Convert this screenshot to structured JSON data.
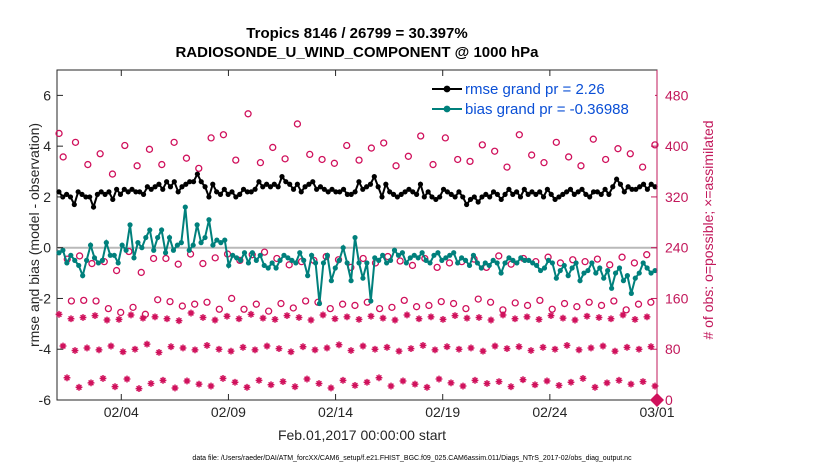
{
  "chart_data": {
    "type": "line",
    "title": "Tropics 8146 / 26799 = 30.397%",
    "subtitle": "RADIOSONDE_U_WIND_COMPONENT @ 1000 hPa",
    "xlabel": "Feb.01,2017 00:00:00 start",
    "ylabel": "rmse and bias (model - observation)",
    "ylabel_right": "# of obs: o=possible; ×=assimilated",
    "footnote": "data file: /Users/raeder/DAI/ATM_forcXX/CAM6_setup/f.e21.FHIST_BGC.f09_025.CAM6assim.011/Diags_NTrS_2017-02/obs_diag_output.nc",
    "xlim": [
      1,
      29
    ],
    "ylim": [
      -6,
      7
    ],
    "ylim_right": [
      0,
      520
    ],
    "x_tick_labels": [
      "02/04",
      "02/09",
      "02/14",
      "02/19",
      "02/24",
      "03/01"
    ],
    "x_tick_values": [
      4,
      9,
      14,
      19,
      24,
      29
    ],
    "y_ticks": [
      -6,
      -4,
      -2,
      0,
      2,
      4,
      6
    ],
    "y_ticks_right": [
      0,
      80,
      160,
      240,
      320,
      400,
      480
    ],
    "legend": [
      {
        "name": "rmse grand pr = 2.26"
      },
      {
        "name": "bias grand pr = -0.36988"
      }
    ],
    "series": [
      {
        "name": "rmse",
        "color": "#000000",
        "values": [
          2.2,
          2.0,
          2.1,
          2.0,
          1.7,
          2.2,
          2.1,
          2.0,
          2.0,
          1.6,
          2.1,
          2.2,
          2.1,
          2.2,
          1.9,
          2.3,
          2.1,
          2.3,
          2.2,
          2.3,
          2.2,
          2.2,
          2.1,
          2.4,
          2.3,
          2.4,
          2.5,
          2.3,
          2.6,
          2.4,
          2.6,
          2.2,
          2.4,
          2.5,
          2.6,
          2.6,
          2.9,
          2.6,
          2.4,
          2.0,
          2.5,
          2.2,
          2.1,
          2.3,
          2.1,
          2.2,
          2.0,
          2.1,
          2.3,
          2.2,
          2.2,
          2.3,
          2.6,
          2.4,
          2.5,
          2.4,
          2.5,
          2.4,
          2.8,
          2.6,
          2.5,
          2.3,
          2.5,
          2.2,
          2.4,
          2.5,
          2.6,
          2.3,
          2.4,
          2.3,
          2.2,
          2.3,
          2.2,
          2.2,
          2.3,
          2.1,
          2.1,
          2.2,
          2.6,
          2.3,
          2.4,
          2.5,
          2.8,
          2.4,
          2.0,
          2.5,
          2.2,
          2.1,
          2.0,
          2.1,
          2.2,
          2.3,
          2.2,
          2.1,
          2.5,
          2.0,
          2.2,
          2.0,
          1.9,
          2.0,
          2.3,
          2.2,
          2.1,
          2.0,
          2.2,
          2.0,
          1.7,
          1.9,
          2.0,
          1.8,
          2.0,
          2.1,
          2.0,
          2.2,
          2.1,
          1.9,
          2.1,
          2.3,
          2.1,
          2.2,
          2.0,
          2.3,
          2.1,
          2.2,
          2.1,
          2.2,
          2.0,
          2.3,
          2.1,
          1.9,
          2.0,
          2.1,
          2.2,
          2.3,
          2.1,
          2.2,
          2.3,
          2.1,
          2.0,
          2.2,
          2.2,
          2.1,
          2.3,
          2.1,
          2.4,
          2.7,
          2.5,
          2.2,
          2.4,
          2.3,
          2.3,
          2.4,
          2.5,
          2.3,
          2.5,
          2.4
        ]
      },
      {
        "name": "bias",
        "color": "#00807c",
        "values": [
          -0.2,
          -0.1,
          -0.6,
          -0.3,
          -0.5,
          -0.7,
          -1.1,
          -0.5,
          0.1,
          -0.4,
          -0.6,
          -0.5,
          0.2,
          -0.3,
          -0.3,
          -0.6,
          0.1,
          -0.1,
          0.9,
          -0.4,
          0.2,
          0.0,
          0.4,
          0.7,
          -0.1,
          0.4,
          0.7,
          -0.2,
          0.4,
          -0.1,
          0.1,
          0.2,
          1.6,
          -0.1,
          0.1,
          0.9,
          0.2,
          0.4,
          1.1,
          0.1,
          0.3,
          0.2,
          0.3,
          -0.7,
          -0.3,
          -0.4,
          -0.5,
          -0.2,
          -0.6,
          -0.2,
          -0.5,
          -0.3,
          -0.7,
          -0.8,
          -0.6,
          -0.8,
          -0.5,
          -0.3,
          -0.4,
          -0.5,
          -0.6,
          -0.2,
          -0.5,
          -1.1,
          -0.3,
          -0.6,
          -2.2,
          -0.6,
          -0.3,
          -1.3,
          -0.8,
          -0.5,
          0.0,
          -0.6,
          -1.3,
          0.4,
          -0.6,
          -1.2,
          -0.6,
          -2.1,
          -0.4,
          -0.5,
          -0.3,
          -0.6,
          -0.5,
          -0.1,
          -0.3,
          -0.2,
          -0.6,
          -0.4,
          -0.3,
          -0.4,
          -0.2,
          -0.5,
          -0.6,
          -0.3,
          -0.2,
          -0.5,
          -0.4,
          -0.3,
          -0.2,
          -0.6,
          -0.4,
          -0.5,
          -0.7,
          -0.3,
          -0.6,
          -0.8,
          -0.6,
          -0.7,
          -0.5,
          -0.6,
          -1.0,
          -0.6,
          -0.4,
          -0.5,
          -0.6,
          -0.4,
          -0.5,
          -0.5,
          -0.6,
          -0.7,
          -0.9,
          -0.8,
          -0.5,
          -0.6,
          -1.2,
          -0.9,
          -0.7,
          -1.1,
          -0.8,
          -0.6,
          -1.3,
          -1.0,
          -0.9,
          -0.6,
          -1.0,
          -0.8,
          -1.2,
          -0.9,
          -1.6,
          -1.0,
          -0.8,
          -1.3,
          -1.1,
          -1.8,
          -1.2,
          -1.0,
          -0.6,
          -0.8,
          -1.0,
          -0.9
        ]
      },
      {
        "name": "possible",
        "color": "#d0115c",
        "marker": "o",
        "axis": "right",
        "values": [
          420,
          383,
          222,
          156,
          406,
          227,
          157,
          371,
          215,
          156,
          388,
          218,
          144,
          356,
          204,
          138,
          401,
          234,
          146,
          369,
          201,
          135,
          395,
          223,
          158,
          371,
          223,
          155,
          406,
          214,
          148,
          381,
          230,
          151,
          365,
          215,
          154,
          413,
          224,
          143,
          418,
          230,
          160,
          378,
          220,
          143,
          451,
          229,
          151,
          374,
          233,
          140,
          398,
          223,
          152,
          380,
          213,
          145,
          435,
          218,
          156,
          387,
          220,
          154,
          379,
          226,
          144,
          373,
          221,
          151,
          401,
          209,
          149,
          378,
          223,
          154,
          397,
          216,
          144,
          405,
          226,
          146,
          369,
          219,
          157,
          384,
          212,
          147,
          416,
          223,
          149,
          371,
          209,
          155,
          413,
          216,
          152,
          379,
          218,
          144,
          376,
          222,
          159,
          402,
          209,
          154,
          392,
          227,
          142,
          367,
          214,
          153,
          418,
          223,
          149,
          386,
          218,
          157,
          374,
          225,
          143,
          406,
          216,
          152,
          383,
          221,
          147,
          369,
          218,
          154,
          411,
          222,
          149,
          379,
          213,
          156,
          396,
          225,
          142,
          388,
          216,
          151,
          367,
          229,
          154,
          402
        ]
      },
      {
        "name": "assimilated",
        "color": "#d0115c",
        "marker": "*",
        "axis": "right",
        "values": [
          135,
          85,
          35,
          128,
          78,
          20,
          130,
          82,
          27,
          133,
          79,
          34,
          126,
          85,
          21,
          127,
          76,
          33,
          134,
          80,
          18,
          129,
          88,
          26,
          131,
          75,
          31,
          128,
          84,
          19,
          125,
          82,
          30,
          137,
          79,
          25,
          130,
          86,
          22,
          126,
          80,
          34,
          132,
          77,
          28,
          128,
          83,
          20,
          135,
          79,
          31,
          129,
          85,
          24,
          127,
          81,
          29,
          133,
          76,
          21,
          130,
          84,
          33,
          126,
          79,
          26,
          134,
          82,
          19,
          128,
          87,
          31,
          131,
          78,
          23,
          127,
          85,
          28,
          132,
          80,
          35,
          129,
          83,
          22,
          126,
          77,
          30,
          134,
          81,
          25,
          128,
          86,
          20,
          131,
          79,
          33,
          127,
          84,
          27,
          133,
          80,
          22,
          129,
          82,
          31,
          130,
          77,
          26,
          126,
          85,
          29,
          134,
          81,
          21,
          128,
          84,
          32,
          131,
          78,
          24,
          127,
          83,
          30,
          133,
          80,
          23,
          129,
          86,
          28,
          126,
          79,
          34,
          132,
          82,
          20,
          130,
          85,
          27,
          128,
          77,
          31,
          134,
          83,
          25,
          127,
          80,
          29,
          131,
          84,
          22
        ]
      }
    ]
  }
}
